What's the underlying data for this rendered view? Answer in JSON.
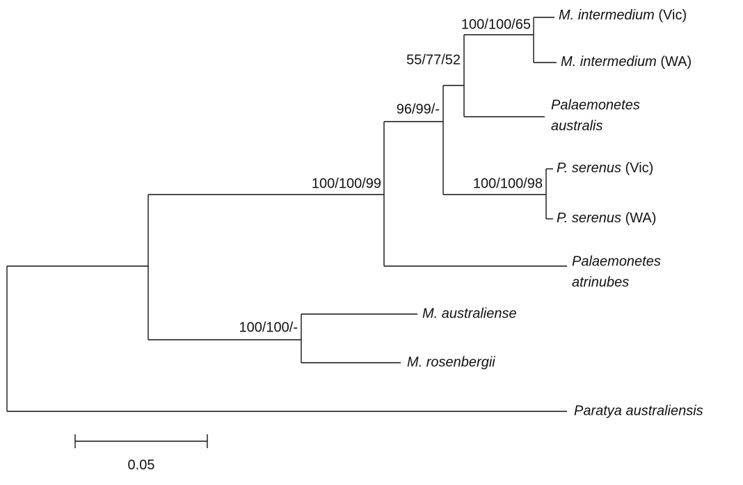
{
  "taxa": [
    {
      "name": "M. intermedium",
      "locality": "(Vic)"
    },
    {
      "name": "M. intermedium",
      "locality": "(WA)"
    },
    {
      "lines": [
        "Palaemonetes",
        "australis"
      ]
    },
    {
      "name": "P. serenus",
      "locality": "(Vic)"
    },
    {
      "name": "P. serenus",
      "locality": "(WA)"
    },
    {
      "lines": [
        "Palaemonetes",
        "atrinubes"
      ]
    },
    {
      "name": "M. australiense"
    },
    {
      "name": "M. rosenbergii"
    },
    {
      "name": "Paratya australiensis"
    }
  ],
  "support": [
    "100/100/65",
    "55/77/52",
    "96/99/-",
    "100/100/98",
    "100/100/99",
    "100/100/-"
  ],
  "scale_bar": {
    "label": "0.05"
  }
}
